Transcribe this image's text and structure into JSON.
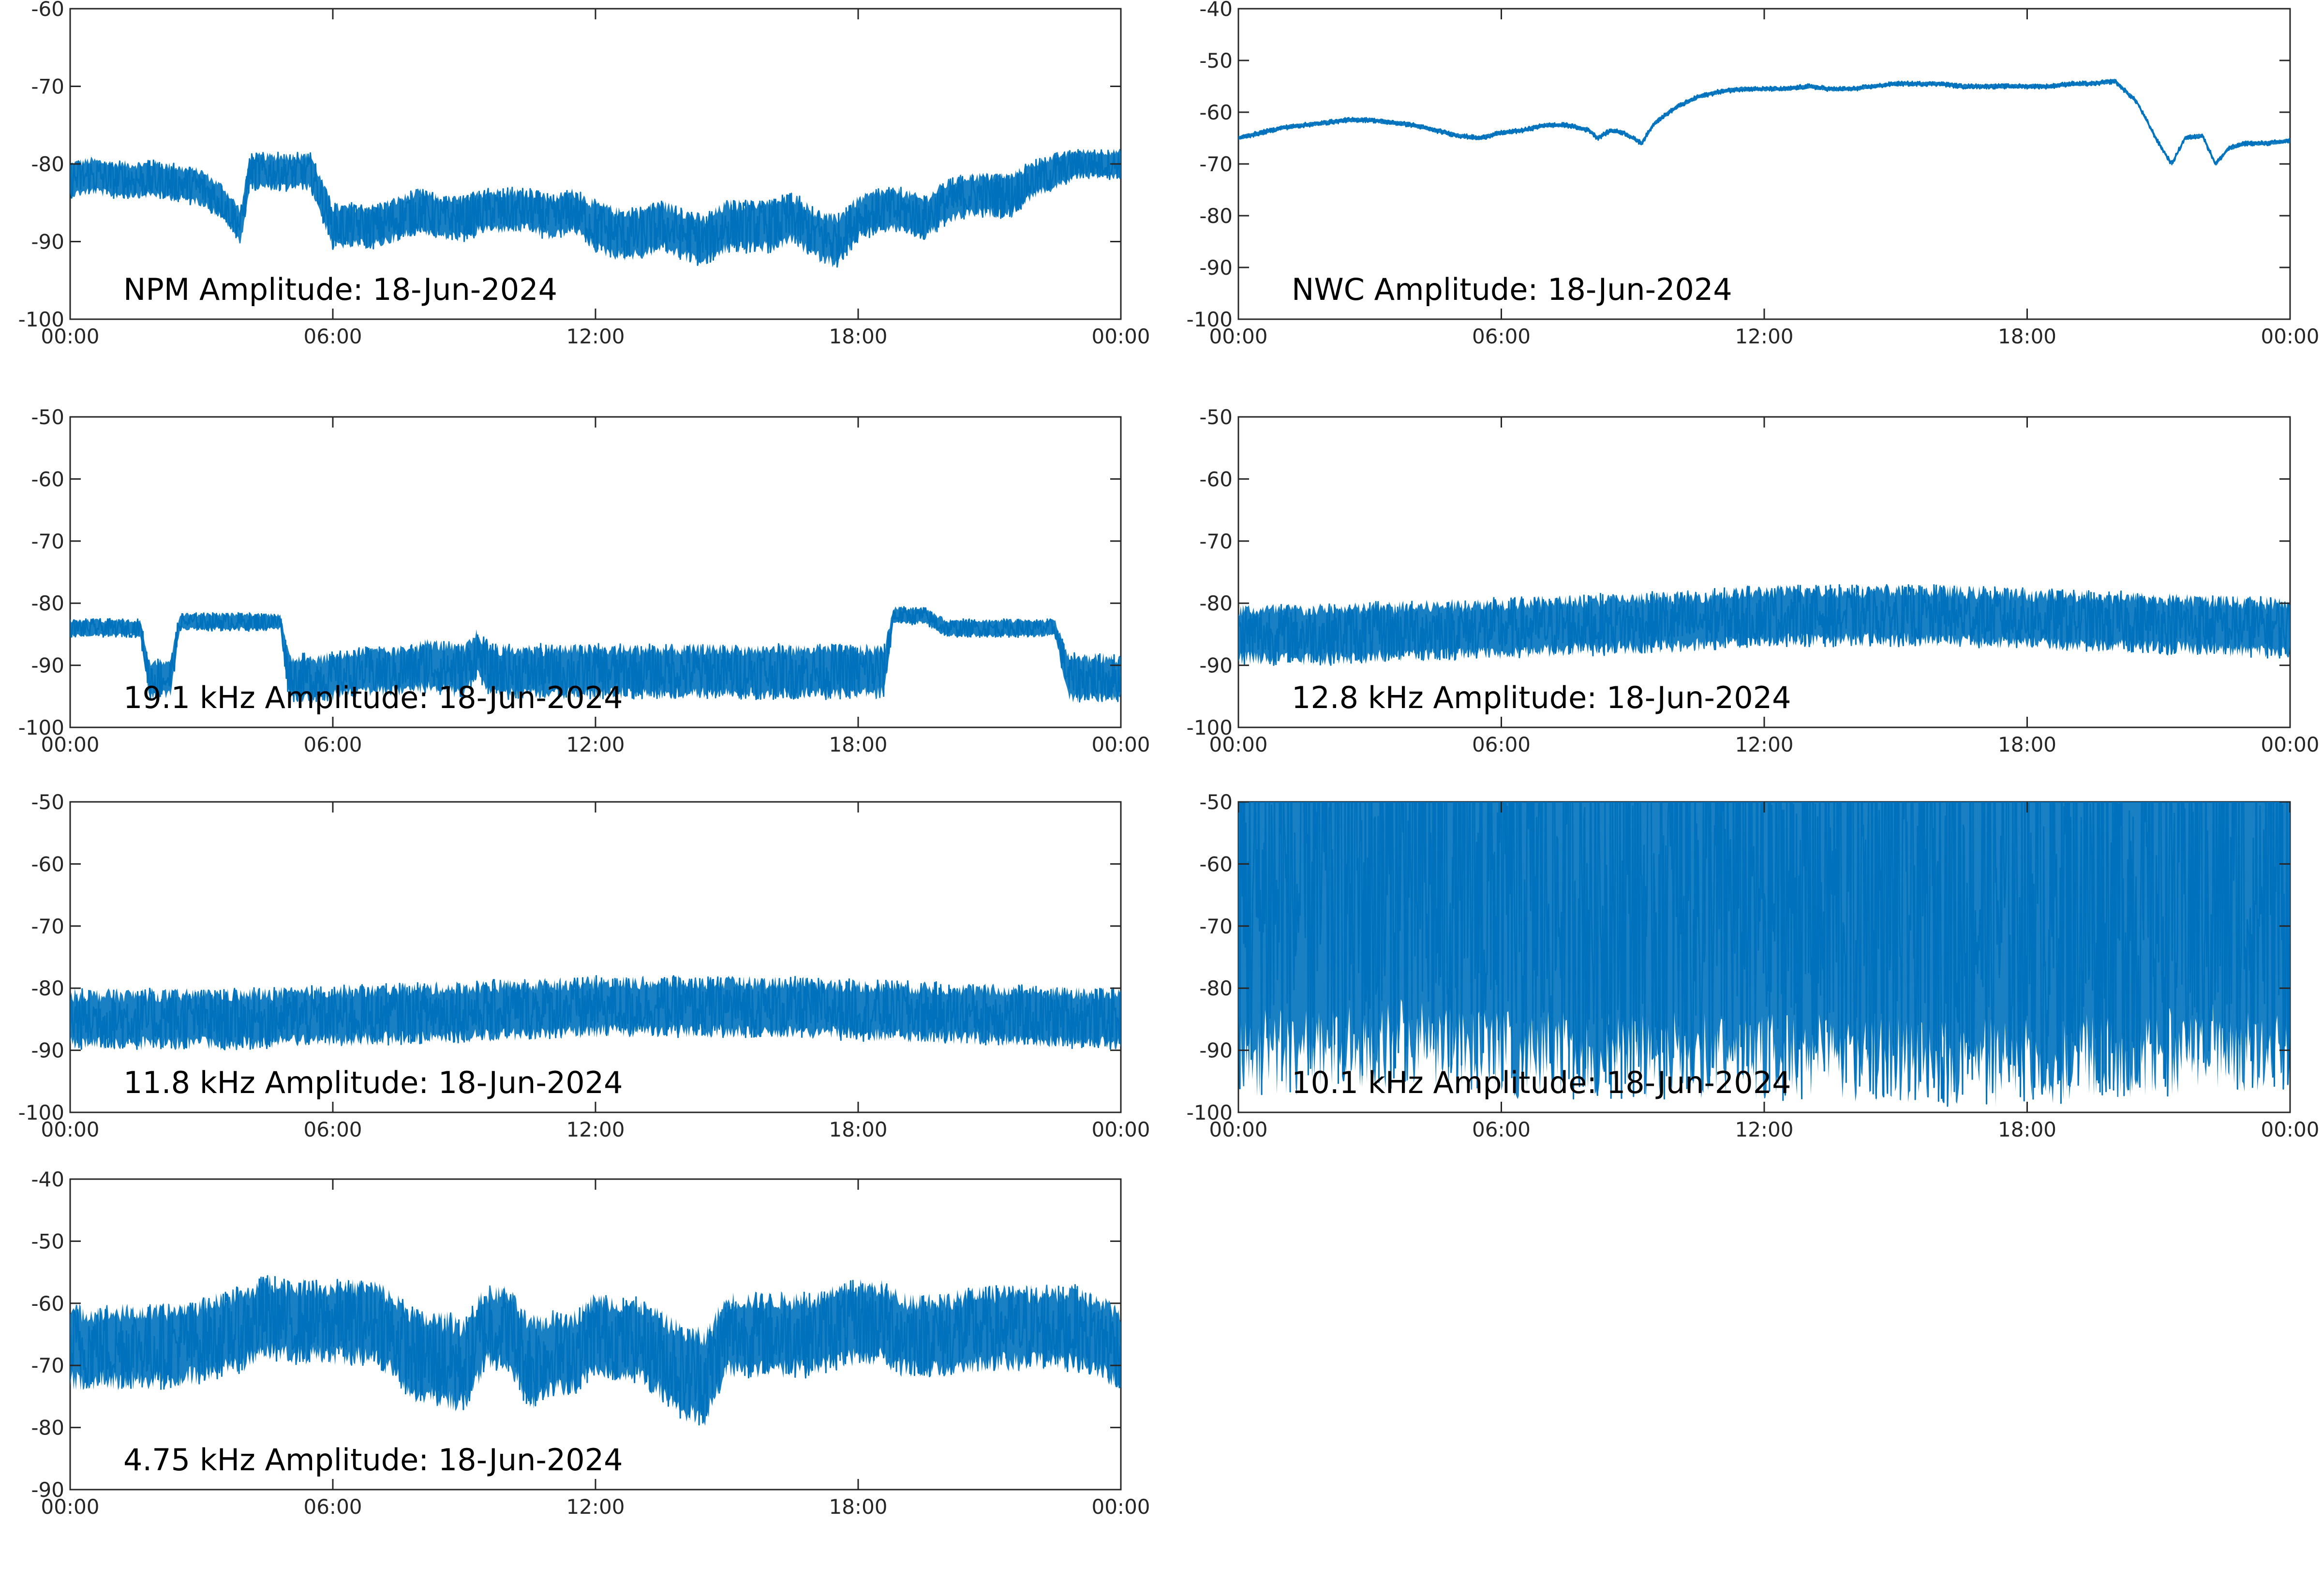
{
  "figure": {
    "date": "18-Jun-2024",
    "line_color": "#0072bd",
    "x_tick_labels": [
      "00:00",
      "06:00",
      "12:00",
      "18:00",
      "00:00"
    ]
  },
  "chart_data": [
    {
      "type": "line",
      "title": "NPM Amplitude: 18-Jun-2024",
      "xlabel": "",
      "ylabel": "",
      "x_ticks": [
        "00:00",
        "06:00",
        "12:00",
        "18:00",
        "00:00"
      ],
      "x_hours": [
        0,
        6,
        12,
        18,
        24
      ],
      "xlim_hours": [
        0,
        24
      ],
      "ylim": [
        -100,
        -60
      ],
      "y_ticks": [
        -100,
        -90,
        -80,
        -70,
        -60
      ],
      "grid": false,
      "x": [
        0,
        0.5,
        1,
        1.5,
        2,
        2.5,
        3,
        3.5,
        3.9,
        4.1,
        4.5,
        5,
        5.5,
        6,
        6.5,
        7,
        7.5,
        8,
        8.5,
        9,
        9.5,
        10,
        10.5,
        11,
        11.5,
        12,
        12.5,
        13,
        13.5,
        14,
        14.5,
        15,
        15.5,
        16,
        16.5,
        17,
        17.5,
        18,
        18.5,
        19,
        19.5,
        20,
        20.5,
        21,
        21.5,
        22,
        22.5,
        23,
        23.5,
        24
      ],
      "series": [
        {
          "values": [
            -82,
            -81.5,
            -82,
            -82,
            -82,
            -82.5,
            -83,
            -85,
            -88,
            -81,
            -81,
            -81,
            -81,
            -88,
            -88,
            -88,
            -87,
            -86,
            -87,
            -87,
            -86,
            -86,
            -86,
            -87,
            -86,
            -88,
            -89,
            -89,
            -88,
            -89,
            -90,
            -88,
            -88,
            -88,
            -87,
            -89,
            -90,
            -87,
            -86,
            -86,
            -87,
            -85,
            -84,
            -84,
            -84,
            -82,
            -81,
            -80,
            -80,
            -80
          ],
          "spread": [
            2.5,
            2.5,
            2.5,
            2.5,
            2.5,
            2.5,
            2.5,
            2.5,
            2.5,
            2.5,
            2.5,
            2.5,
            2.5,
            3,
            3,
            3,
            3,
            3,
            3,
            3,
            3,
            3,
            3,
            3,
            3,
            3.5,
            3.5,
            3.5,
            3.5,
            3.5,
            3.5,
            3.5,
            3.5,
            3.5,
            3.5,
            3.5,
            3.5,
            3,
            3,
            3,
            3,
            3,
            3,
            3,
            3,
            2.5,
            2.5,
            2,
            2,
            2
          ]
        }
      ]
    },
    {
      "type": "line",
      "title": "NWC Amplitude: 18-Jun-2024",
      "xlabel": "",
      "ylabel": "",
      "x_ticks": [
        "00:00",
        "06:00",
        "12:00",
        "18:00",
        "00:00"
      ],
      "x_hours": [
        0,
        6,
        12,
        18,
        24
      ],
      "xlim_hours": [
        0,
        24
      ],
      "ylim": [
        -100,
        -40
      ],
      "y_ticks": [
        -100,
        -90,
        -80,
        -70,
        -60,
        -50,
        -40
      ],
      "grid": false,
      "x": [
        0,
        0.5,
        1,
        1.5,
        2,
        2.5,
        3,
        3.5,
        4,
        4.5,
        5,
        5.5,
        6,
        6.5,
        7,
        7.5,
        8,
        8.2,
        8.5,
        8.8,
        9.2,
        9.5,
        10,
        10.5,
        11,
        11.5,
        12,
        12.5,
        13,
        13.5,
        14,
        14.5,
        15,
        15.5,
        16,
        16.5,
        17,
        17.5,
        18,
        18.5,
        19,
        19.5,
        20,
        20.5,
        21,
        21.3,
        21.6,
        22,
        22.3,
        22.6,
        23,
        23.5,
        24
      ],
      "series": [
        {
          "values": [
            -65,
            -64,
            -63,
            -62.5,
            -62,
            -61.5,
            -61.5,
            -62,
            -62.5,
            -63.5,
            -64.5,
            -65,
            -64,
            -63.5,
            -62.5,
            -62.5,
            -63.5,
            -65,
            -63.5,
            -64,
            -66,
            -62,
            -59,
            -57,
            -56,
            -55.5,
            -55.5,
            -55.5,
            -55,
            -55.5,
            -55.5,
            -55,
            -54.5,
            -54.5,
            -54.5,
            -55,
            -55,
            -55,
            -55,
            -55,
            -54.5,
            -54.5,
            -54,
            -58,
            -66,
            -70,
            -65,
            -64.5,
            -70,
            -67,
            -66,
            -66,
            -65.5
          ],
          "spread": [
            0.5,
            0.5,
            0.5,
            0.5,
            0.5,
            0.5,
            0.5,
            0.5,
            0.5,
            0.5,
            0.5,
            0.5,
            0.5,
            0.5,
            0.5,
            0.5,
            0.5,
            0.5,
            0.5,
            0.5,
            0.5,
            0.5,
            0.5,
            0.5,
            0.5,
            0.5,
            0.5,
            0.5,
            0.5,
            0.5,
            0.5,
            0.5,
            0.5,
            0.5,
            0.5,
            0.5,
            0.5,
            0.5,
            0.5,
            0.5,
            0.5,
            0.5,
            0.5,
            0.5,
            0.5,
            0.5,
            0.5,
            0.5,
            0.5,
            0.5,
            0.5,
            0.5,
            0.5
          ]
        }
      ]
    },
    {
      "type": "line",
      "title": "19.1 kHz Amplitude: 18-Jun-2024",
      "xlabel": "",
      "ylabel": "",
      "x_ticks": [
        "00:00",
        "06:00",
        "12:00",
        "18:00",
        "00:00"
      ],
      "x_hours": [
        0,
        6,
        12,
        18,
        24
      ],
      "xlim_hours": [
        0,
        24
      ],
      "ylim": [
        -100,
        -50
      ],
      "y_ticks": [
        -100,
        -90,
        -80,
        -70,
        -60,
        -50
      ],
      "grid": false,
      "x": [
        0,
        0.8,
        1.6,
        1.8,
        2.3,
        2.5,
        3.2,
        4,
        4.8,
        5,
        5.8,
        6.6,
        7.4,
        8.2,
        9,
        9.3,
        9.6,
        10,
        11,
        12,
        13,
        14,
        15,
        16,
        17,
        18,
        18.6,
        18.8,
        19.5,
        20,
        20.6,
        21,
        21.8,
        22.5,
        22.8,
        23.4,
        24
      ],
      "series": [
        {
          "values": [
            -84,
            -84,
            -84,
            -92,
            -92,
            -83,
            -83,
            -83,
            -83,
            -92,
            -92,
            -91,
            -91,
            -90,
            -91,
            -88,
            -91,
            -91,
            -91,
            -91,
            -91,
            -91,
            -91,
            -91,
            -91,
            -91,
            -91,
            -82,
            -82,
            -84,
            -84,
            -84,
            -84,
            -84,
            -92,
            -92,
            -92
          ],
          "spread": [
            1.5,
            1.5,
            1.5,
            3.5,
            3.5,
            1.5,
            1.5,
            1.5,
            1.5,
            4,
            4,
            4,
            4,
            4.5,
            4.5,
            4,
            4.5,
            4.5,
            4.5,
            4.5,
            4.5,
            4.5,
            4.5,
            4.5,
            4.5,
            4.5,
            4.5,
            1.5,
            1.5,
            1.5,
            1.5,
            1.5,
            1.5,
            1.5,
            4,
            4,
            4
          ]
        }
      ]
    },
    {
      "type": "line",
      "title": "12.8 kHz Amplitude: 18-Jun-2024",
      "xlabel": "",
      "ylabel": "",
      "x_ticks": [
        "00:00",
        "06:00",
        "12:00",
        "18:00",
        "00:00"
      ],
      "x_hours": [
        0,
        6,
        12,
        18,
        24
      ],
      "xlim_hours": [
        0,
        24
      ],
      "ylim": [
        -100,
        -50
      ],
      "y_ticks": [
        -100,
        -90,
        -80,
        -70,
        -60,
        -50
      ],
      "grid": false,
      "x": [
        0,
        2,
        4,
        6,
        8,
        10,
        12,
        14,
        16,
        18,
        20,
        22,
        24
      ],
      "series": [
        {
          "values": [
            -85,
            -85,
            -84.5,
            -84,
            -83.5,
            -83,
            -82,
            -82,
            -82,
            -82.5,
            -83,
            -83.5,
            -84
          ],
          "spread": [
            5,
            5,
            5,
            5,
            5,
            5,
            5,
            5,
            5,
            5,
            5,
            5,
            5
          ]
        }
      ]
    },
    {
      "type": "line",
      "title": "11.8 kHz Amplitude: 18-Jun-2024",
      "xlabel": "",
      "ylabel": "",
      "x_ticks": [
        "00:00",
        "06:00",
        "12:00",
        "18:00",
        "00:00"
      ],
      "x_hours": [
        0,
        6,
        12,
        18,
        24
      ],
      "xlim_hours": [
        0,
        24
      ],
      "ylim": [
        -100,
        -50
      ],
      "y_ticks": [
        -100,
        -90,
        -80,
        -70,
        -60,
        -50
      ],
      "grid": false,
      "x": [
        0,
        2,
        4,
        6,
        8,
        10,
        12,
        14,
        16,
        18,
        20,
        22,
        24
      ],
      "series": [
        {
          "values": [
            -85,
            -85,
            -85,
            -84.5,
            -84,
            -83.5,
            -83,
            -83,
            -83,
            -83.5,
            -84,
            -84.5,
            -85
          ],
          "spread": [
            5,
            5,
            5,
            5,
            5,
            5,
            5,
            5,
            5,
            5,
            5,
            5,
            5
          ]
        }
      ]
    },
    {
      "type": "line",
      "title": "10.1 kHz Amplitude: 18-Jun-2024",
      "xlabel": "",
      "ylabel": "",
      "x_ticks": [
        "00:00",
        "06:00",
        "12:00",
        "18:00",
        "00:00"
      ],
      "x_hours": [
        0,
        6,
        12,
        18,
        24
      ],
      "xlim_hours": [
        0,
        24
      ],
      "ylim": [
        -100,
        -50
      ],
      "y_ticks": [
        -100,
        -90,
        -80,
        -70,
        -60,
        -50
      ],
      "grid": false,
      "x": [
        0,
        2,
        4,
        6,
        8,
        10,
        12,
        14,
        16,
        18,
        20,
        22,
        24
      ],
      "series": [
        {
          "values": [
            -66,
            -65,
            -64,
            -66,
            -66,
            -66,
            -66,
            -67,
            -67,
            -67,
            -66,
            -65,
            -65
          ],
          "spread": [
            32,
            32,
            32,
            32,
            32,
            32,
            32,
            32,
            32,
            32,
            32,
            32,
            32
          ]
        }
      ]
    },
    {
      "type": "line",
      "title": "4.75 kHz Amplitude: 18-Jun-2024",
      "xlabel": "",
      "ylabel": "",
      "x_ticks": [
        "00:00",
        "06:00",
        "12:00",
        "18:00",
        "00:00"
      ],
      "x_hours": [
        0,
        6,
        12,
        18,
        24
      ],
      "xlim_hours": [
        0,
        24
      ],
      "ylim": [
        -90,
        -40
      ],
      "y_ticks": [
        -90,
        -80,
        -70,
        -60,
        -50,
        -40
      ],
      "grid": false,
      "x": [
        0,
        1,
        2,
        3,
        4,
        4.5,
        5,
        6,
        7,
        8,
        8.5,
        9,
        9.5,
        10,
        10.5,
        11,
        11.5,
        12,
        13,
        14,
        14.5,
        15,
        15.5,
        16,
        17,
        18,
        18.5,
        19,
        20,
        21,
        22,
        23,
        24
      ],
      "series": [
        {
          "values": [
            -67,
            -67,
            -67,
            -66,
            -64,
            -62,
            -63,
            -63,
            -63,
            -69,
            -69,
            -70,
            -64,
            -64,
            -70,
            -68,
            -68,
            -65,
            -66,
            -71,
            -72,
            -65,
            -65,
            -65,
            -65,
            -63,
            -63,
            -65,
            -65,
            -64,
            -64,
            -64,
            -67
          ],
          "spread": [
            7,
            7,
            7,
            7,
            7,
            7,
            7,
            7,
            7,
            8,
            8,
            8,
            7,
            7,
            8,
            7,
            7,
            7,
            7,
            8,
            8,
            7,
            7,
            7,
            7,
            7,
            7,
            7,
            7,
            7,
            7,
            7,
            7
          ]
        }
      ]
    }
  ]
}
